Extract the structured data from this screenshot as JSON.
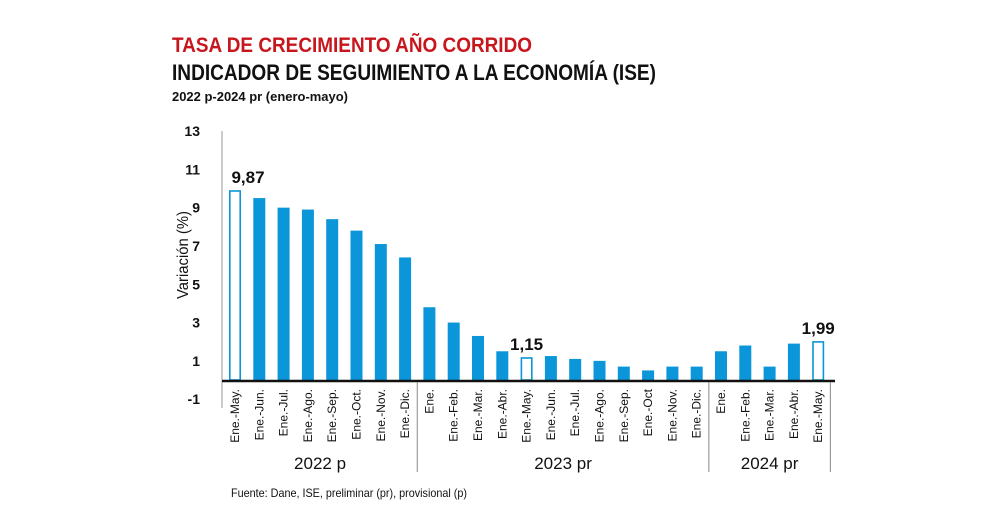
{
  "chart_data": {
    "type": "bar",
    "title": "TASA DE CRECIMIENTO AÑO CORRIDO",
    "subtitle": "INDICADOR DE SEGUIMIENTO A LA ECONOMÍA (ISE)",
    "period": "2022 p-2024 pr (enero-mayo)",
    "ylabel": "Variación (%)",
    "xlabel": "",
    "ylim": [
      -1,
      13
    ],
    "yticks": [
      "13",
      "11",
      "9",
      "7",
      "5",
      "3",
      "1",
      "-1"
    ],
    "ytick_values": [
      13,
      11,
      9,
      7,
      5,
      3,
      1,
      -1
    ],
    "grid": false,
    "colors": {
      "bar": "#0a96d8",
      "highlight_outline": "#0a96d8",
      "title": "#c8161d"
    },
    "groups": [
      {
        "label": "2022 p",
        "count": 8
      },
      {
        "label": "2023 pr",
        "count": 12
      },
      {
        "label": "2024 pr",
        "count": 5
      }
    ],
    "categories": [
      "Ene.-May.",
      "Ene.-Jun.",
      "Ene.-Jul.",
      "Ene.-Ago.",
      "Ene.-Sep.",
      "Ene.-Oct.",
      "Ene.-Nov.",
      "Ene.-Dic.",
      "Ene.",
      "Ene.-Feb.",
      "Ene.-Mar.",
      "Ene.-Abr.",
      "Ene.-May.",
      "Ene.-Jun.",
      "Ene.-Jul.",
      "Ene.-Ago.",
      "Ene.-Sep.",
      "Ene.-Oct",
      "Ene.-Nov.",
      "Ene.-Dic.",
      "Ene.",
      "Ene.-Feb.",
      "Ene.-Mar.",
      "Ene.-Abr.",
      "Ene.-May."
    ],
    "values": [
      9.87,
      9.5,
      9.0,
      8.9,
      8.4,
      7.8,
      7.1,
      6.4,
      3.8,
      3.0,
      2.3,
      1.5,
      1.15,
      1.25,
      1.1,
      1.0,
      0.7,
      0.5,
      0.7,
      0.7,
      1.5,
      1.8,
      0.7,
      1.9,
      1.99
    ],
    "highlighted": [
      0,
      12,
      24
    ],
    "data_labels": [
      {
        "index": 0,
        "text": "9,87"
      },
      {
        "index": 12,
        "text": "1,15"
      },
      {
        "index": 24,
        "text": "1,99"
      }
    ],
    "source": "Fuente: Dane, ISE, preliminar (pr), provisional (p)"
  }
}
